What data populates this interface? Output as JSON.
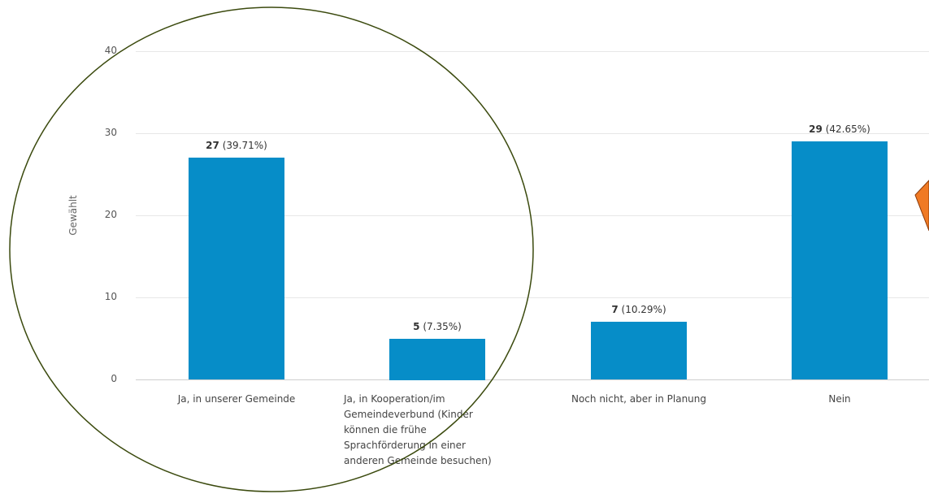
{
  "chart_data": {
    "type": "bar",
    "ylabel": "Gewählt",
    "xlabel": "",
    "ylim": [
      0,
      40
    ],
    "yticks": [
      "0",
      "10",
      "20",
      "30",
      "40"
    ],
    "grid": true,
    "categories": [
      "Ja, in unserer Gemeinde",
      "Ja, in Kooperation/im Gemeindeverbund (Kinder können die frühe Sprachförderung in einer anderen Gemeinde besuchen)",
      "Noch nicht, aber in Planung",
      "Nein"
    ],
    "category_lines": [
      [
        "Ja, in unserer Gemeinde"
      ],
      [
        "Ja, in Kooperation/im",
        "Gemeindeverbund (Kinder",
        "können die frühe",
        "Sprachförderung in einer",
        "anderen Gemeinde besuchen)"
      ],
      [
        "Noch nicht, aber in Planung"
      ],
      [
        "Nein"
      ]
    ],
    "values": [
      27,
      5,
      7,
      29
    ],
    "value_labels": [
      "27",
      "5",
      "7",
      "29"
    ],
    "percent_labels": [
      "(39.71%)",
      "(7.35%)",
      "(10.29%)",
      "(42.65%)"
    ],
    "bar_color": "#068dc8"
  },
  "annotations": {
    "circle_color": "#3b4a0e",
    "arrow_color": "#f07a24",
    "arrow_outline": "#8a3a0a"
  }
}
